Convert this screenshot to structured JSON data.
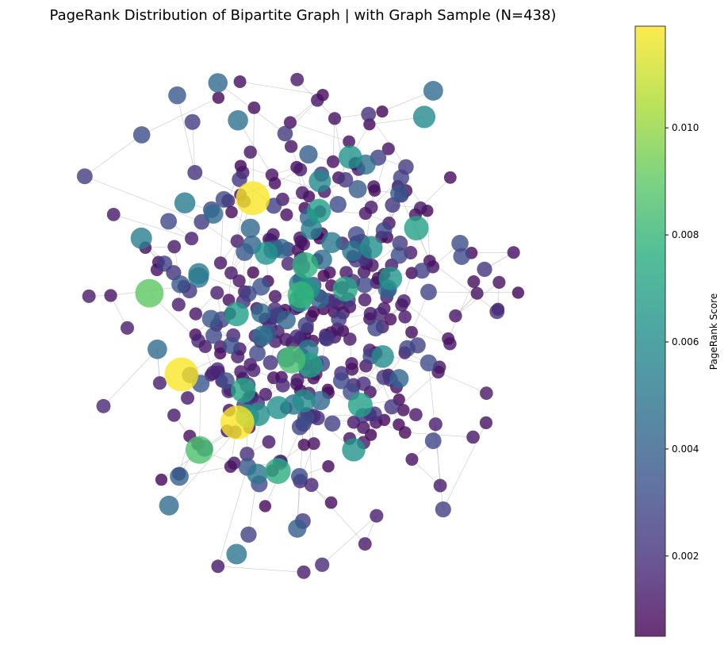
{
  "chart_data": {
    "type": "scatter",
    "title": "PageRank Distribution of Bipartite Graph | with Graph Sample (N=438)",
    "colorbar": {
      "label": "PageRank Score",
      "range": [
        0.0005,
        0.0119
      ],
      "ticks": [
        0.002,
        0.004,
        0.006,
        0.008,
        0.01
      ],
      "tick_labels": [
        "0.002",
        "0.004",
        "0.006",
        "0.008",
        "0.010"
      ],
      "colormap": "viridis"
    },
    "grid": false,
    "axes_visible": false,
    "node_count": 438,
    "highlight_nodes": [
      {
        "x": 0.395,
        "y": 0.752,
        "score": 0.0118
      },
      {
        "x": 0.252,
        "y": 0.418,
        "score": 0.0118
      },
      {
        "x": 0.364,
        "y": 0.327,
        "score": 0.0118
      },
      {
        "x": 0.188,
        "y": 0.572,
        "score": 0.009
      },
      {
        "x": 0.473,
        "y": 0.446,
        "score": 0.0085
      },
      {
        "x": 0.491,
        "y": 0.569,
        "score": 0.008
      },
      {
        "x": 0.5,
        "y": 0.625,
        "score": 0.0078
      },
      {
        "x": 0.445,
        "y": 0.235,
        "score": 0.0076
      },
      {
        "x": 0.288,
        "y": 0.275,
        "score": 0.0086
      },
      {
        "x": 0.376,
        "y": 0.388,
        "score": 0.0072
      },
      {
        "x": 0.58,
        "y": 0.58,
        "score": 0.0072
      },
      {
        "x": 0.655,
        "y": 0.452,
        "score": 0.006
      },
      {
        "x": 0.59,
        "y": 0.83,
        "score": 0.0064
      },
      {
        "x": 0.527,
        "y": 0.728,
        "score": 0.0068
      },
      {
        "x": 0.553,
        "y": 0.668,
        "score": 0.0052
      },
      {
        "x": 0.61,
        "y": 0.36,
        "score": 0.007
      }
    ]
  }
}
